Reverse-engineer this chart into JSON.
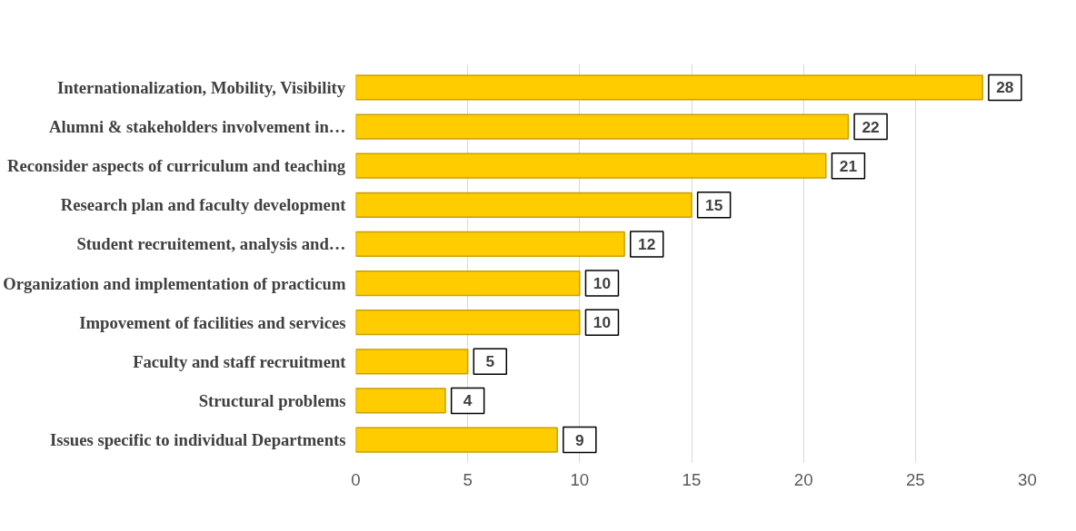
{
  "chart_data": {
    "type": "bar",
    "orientation": "horizontal",
    "categories": [
      "Internationalization, Mobility, Visibility",
      "Alumni & stakeholders involvement in…",
      "Reconsider aspects of curriculum and teaching",
      "Research plan and faculty development",
      "Student recruitement, analysis and…",
      "Organization and implementation of practicum",
      "Impovement of facilities and services",
      "Faculty and staff recruitment",
      "Structural problems",
      "Issues specific to individual Departments"
    ],
    "values": [
      28,
      22,
      21,
      15,
      12,
      10,
      10,
      5,
      4,
      9
    ],
    "color": "#ffcc00",
    "xlim": [
      0,
      30
    ],
    "xticks": [
      0,
      5,
      10,
      15,
      20,
      25,
      30
    ],
    "grid": "x",
    "data_labels": true
  }
}
